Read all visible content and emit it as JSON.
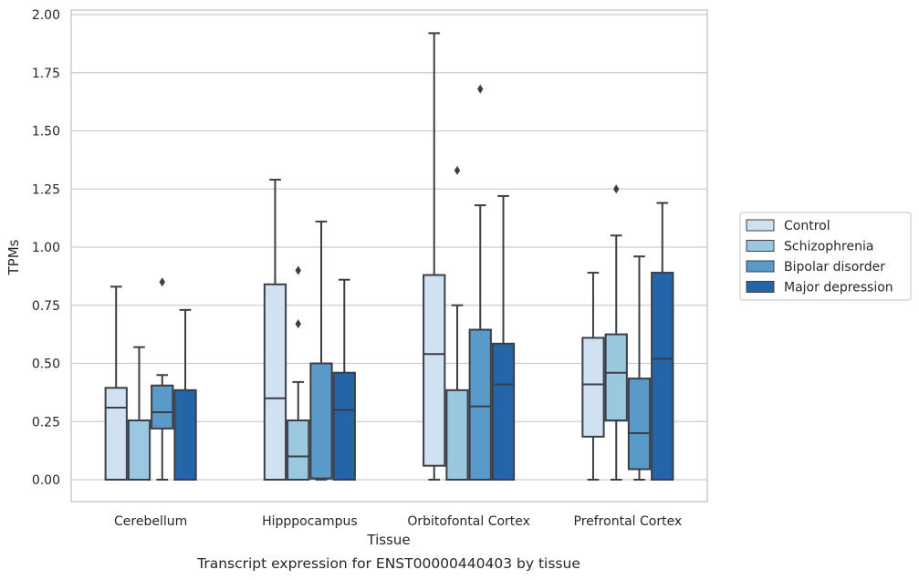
{
  "chart_data": {
    "type": "box",
    "title": "",
    "caption": "Transcript expression for ENST00000440403 by tissue",
    "xlabel": "Tissue",
    "ylabel": "TPMs",
    "ylim": [
      -0.09,
      2.02
    ],
    "yticks": [
      "0.00",
      "0.25",
      "0.50",
      "0.75",
      "1.00",
      "1.25",
      "1.50",
      "1.75",
      "2.00"
    ],
    "grid": "horizontal",
    "legend_position": "right",
    "categories": [
      "Cerebellum",
      "Hipppocampus",
      "Orbitofontal Cortex",
      "Prefrontal Cortex"
    ],
    "series": [
      {
        "name": "Control",
        "color": "#d0e1f2",
        "boxes": [
          {
            "whisker_low": 0.0,
            "q1": 0.0,
            "median": 0.31,
            "q3": 0.395,
            "whisker_high": 0.83,
            "outliers": []
          },
          {
            "whisker_low": 0.0,
            "q1": 0.0,
            "median": 0.35,
            "q3": 0.84,
            "whisker_high": 1.29,
            "outliers": []
          },
          {
            "whisker_low": 0.0,
            "q1": 0.06,
            "median": 0.54,
            "q3": 0.88,
            "whisker_high": 1.92,
            "outliers": []
          },
          {
            "whisker_low": 0.0,
            "q1": 0.185,
            "median": 0.41,
            "q3": 0.61,
            "whisker_high": 0.89,
            "outliers": []
          }
        ]
      },
      {
        "name": "Schizophrenia",
        "color": "#9ac8e0",
        "boxes": [
          {
            "whisker_low": 0.0,
            "q1": 0.0,
            "median": 0.255,
            "q3": 0.255,
            "whisker_high": 0.57,
            "outliers": []
          },
          {
            "whisker_low": 0.0,
            "q1": 0.0,
            "median": 0.1,
            "q3": 0.255,
            "whisker_high": 0.42,
            "outliers": [
              0.67,
              0.9
            ]
          },
          {
            "whisker_low": 0.0,
            "q1": 0.0,
            "median": 0.0,
            "q3": 0.385,
            "whisker_high": 0.75,
            "outliers": [
              1.33
            ]
          },
          {
            "whisker_low": 0.0,
            "q1": 0.255,
            "median": 0.46,
            "q3": 0.625,
            "whisker_high": 1.05,
            "outliers": [
              1.25
            ]
          }
        ]
      },
      {
        "name": "Bipolar disorder",
        "color": "#5a9ac8",
        "boxes": [
          {
            "whisker_low": 0.0,
            "q1": 0.22,
            "median": 0.29,
            "q3": 0.405,
            "whisker_high": 0.45,
            "outliers": [
              0.85
            ]
          },
          {
            "whisker_low": 0.0,
            "q1": 0.005,
            "median": 0.005,
            "q3": 0.5,
            "whisker_high": 1.11,
            "outliers": []
          },
          {
            "whisker_low": 0.0,
            "q1": 0.0,
            "median": 0.315,
            "q3": 0.645,
            "whisker_high": 1.18,
            "outliers": [
              1.68
            ]
          },
          {
            "whisker_low": 0.0,
            "q1": 0.045,
            "median": 0.2,
            "q3": 0.435,
            "whisker_high": 0.96,
            "outliers": []
          }
        ]
      },
      {
        "name": "Major depression",
        "color": "#2465a8",
        "boxes": [
          {
            "whisker_low": 0.0,
            "q1": 0.0,
            "median": 0.0,
            "q3": 0.385,
            "whisker_high": 0.73,
            "outliers": []
          },
          {
            "whisker_low": 0.0,
            "q1": 0.0,
            "median": 0.3,
            "q3": 0.46,
            "whisker_high": 0.86,
            "outliers": []
          },
          {
            "whisker_low": 0.0,
            "q1": 0.0,
            "median": 0.41,
            "q3": 0.585,
            "whisker_high": 1.22,
            "outliers": []
          },
          {
            "whisker_low": 0.0,
            "q1": 0.0,
            "median": 0.52,
            "q3": 0.89,
            "whisker_high": 1.19,
            "outliers": []
          }
        ]
      }
    ]
  },
  "colors": {
    "grid": "#cccccc",
    "frame": "#cccccc",
    "box_edge": "#3a3f47",
    "text": "#262626"
  }
}
